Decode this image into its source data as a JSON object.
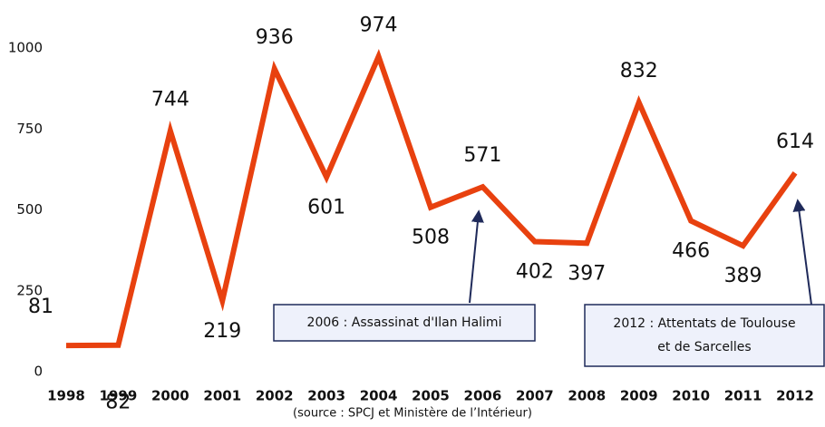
{
  "chart_data": {
    "type": "line",
    "x": [
      1998,
      1999,
      2000,
      2001,
      2002,
      2003,
      2004,
      2005,
      2006,
      2007,
      2008,
      2009,
      2010,
      2011,
      2012
    ],
    "xlim": [
      1998,
      2012
    ],
    "series": [
      {
        "color": "#e8410f",
        "values": [
          81,
          82,
          744,
          219,
          936,
          601,
          974,
          508,
          571,
          402,
          397,
          832,
          466,
          389,
          614
        ]
      }
    ],
    "ylim": [
      0,
      1000
    ],
    "yticks": [
      0,
      250,
      500,
      750,
      1000
    ],
    "annotations": [
      {
        "lines": [
          "2006 : Assassinat d'Ilan Halimi"
        ]
      },
      {
        "lines": [
          "2012 : Attentats de Toulouse",
          "et de Sarcelles"
        ]
      }
    ],
    "source": "(source : SPCJ et Ministère de l’Intérieur)"
  }
}
